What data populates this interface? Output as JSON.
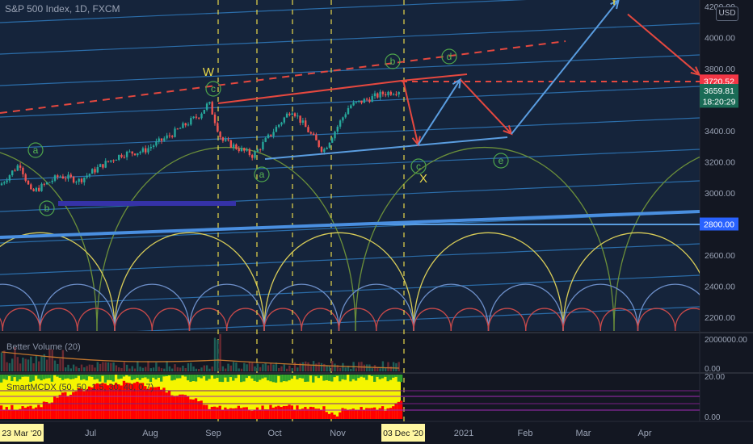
{
  "header": {
    "symbol_title": "S&P 500 Index, 1D, FXCM"
  },
  "price_axis": {
    "currency_button": "USD",
    "tick_labels": [
      "4200.00",
      "4000.00",
      "3800.00",
      "3600.00",
      "3400.00",
      "3200.00",
      "3000.00",
      "2600.00",
      "2400.00",
      "2200.00"
    ]
  },
  "price_badges": [
    {
      "label": "3720.52",
      "value": 3720.52,
      "color": "#f23645"
    },
    {
      "label": "3659.81",
      "value": 3659.81,
      "color": "#1a6b56"
    },
    {
      "label": "18:20:29",
      "value": 3590,
      "color": "#1a6b56"
    },
    {
      "label": "2800.00",
      "value": 2800,
      "color": "#2962ff"
    }
  ],
  "time_axis": {
    "start_badge": "23 Mar '20",
    "current_badge": "03 Dec '20",
    "month_labels": [
      "Jul",
      "Aug",
      "Sep",
      "Oct",
      "Nov",
      "2021",
      "Feb",
      "Mar",
      "Apr"
    ]
  },
  "wave_labels": {
    "major": [
      "W",
      "X",
      "Y"
    ],
    "circled": [
      "a",
      "b",
      "c",
      "a",
      "b",
      "c",
      "d",
      "e"
    ]
  },
  "volume_panel": {
    "title": "Better Volume (20)",
    "axis_labels": [
      "2000000.00",
      "0.00"
    ]
  },
  "mcdx_panel": {
    "title": "SmartMCDX (50, 50, 1.5, 30, 40, 0.7)",
    "axis_labels": [
      "20.00",
      "0.00"
    ]
  },
  "colors": {
    "background": "#131722",
    "grid_channel": "#2e75b6",
    "resistance": "#e5483f",
    "support": "#5a9de0",
    "cycle_green": "#6b8f3a",
    "cycle_yellow": "#d8cc58",
    "cycle_blue": "#6d8fc9",
    "cycle_red": "#c94a4a",
    "candle_up": "#26a69a",
    "candle_down": "#ef5350",
    "mcdx_yellow": "#f5f500",
    "mcdx_red": "#ff0000",
    "mcdx_green": "#2ea02e"
  },
  "chart_data": {
    "type": "line",
    "title": "S&P 500 Index, 1D, FXCM",
    "y_range": [
      2150,
      4250
    ],
    "x": [
      "23 Mar '20",
      "Jul",
      "Aug",
      "Sep",
      "Oct",
      "Nov",
      "03 Dec '20",
      "2021",
      "Feb",
      "Mar",
      "Apr"
    ],
    "series": [
      {
        "name": "S&P 500 Index",
        "points": [
          [
            "Jun 1",
            3050
          ],
          [
            "Jun 8",
            3190
          ],
          [
            "Jun 12",
            3000
          ],
          [
            "Jun 22",
            3110
          ],
          [
            "Jun 29",
            3080
          ],
          [
            "Jul 10",
            3180
          ],
          [
            "Jul 20",
            3250
          ],
          [
            "Jul 31",
            3270
          ],
          [
            "Aug 14",
            3375
          ],
          [
            "Aug 28",
            3500
          ],
          [
            "Sep 2",
            3580
          ],
          [
            "Sep 8",
            3340
          ],
          [
            "Sep 23",
            3240
          ],
          [
            "Oct 12",
            3540
          ],
          [
            "Oct 28",
            3270
          ],
          [
            "Nov 9",
            3560
          ],
          [
            "Nov 24",
            3640
          ],
          [
            "Dec 3",
            3666
          ]
        ]
      }
    ],
    "projection": [
      {
        "from": [
          "Dec 3",
          3720
        ],
        "to": [
          "Dec 10",
          3310
        ],
        "color": "red"
      },
      {
        "from": [
          "Dec 10",
          3310
        ],
        "to": [
          "Dec 30",
          3730
        ],
        "color": "blue"
      },
      {
        "from": [
          "Dec 30",
          3730
        ],
        "to": [
          "Jan 25",
          3380
        ],
        "color": "red"
      },
      {
        "from": [
          "Jan 25",
          3380
        ],
        "to": [
          "Mar 20",
          4240
        ],
        "color": "blue"
      },
      {
        "from": [
          "Mar 25",
          4150
        ],
        "to": [
          "Apr 30",
          3760
        ],
        "color": "red"
      }
    ],
    "horizontal_levels": [
      3720.52,
      2800
    ]
  }
}
